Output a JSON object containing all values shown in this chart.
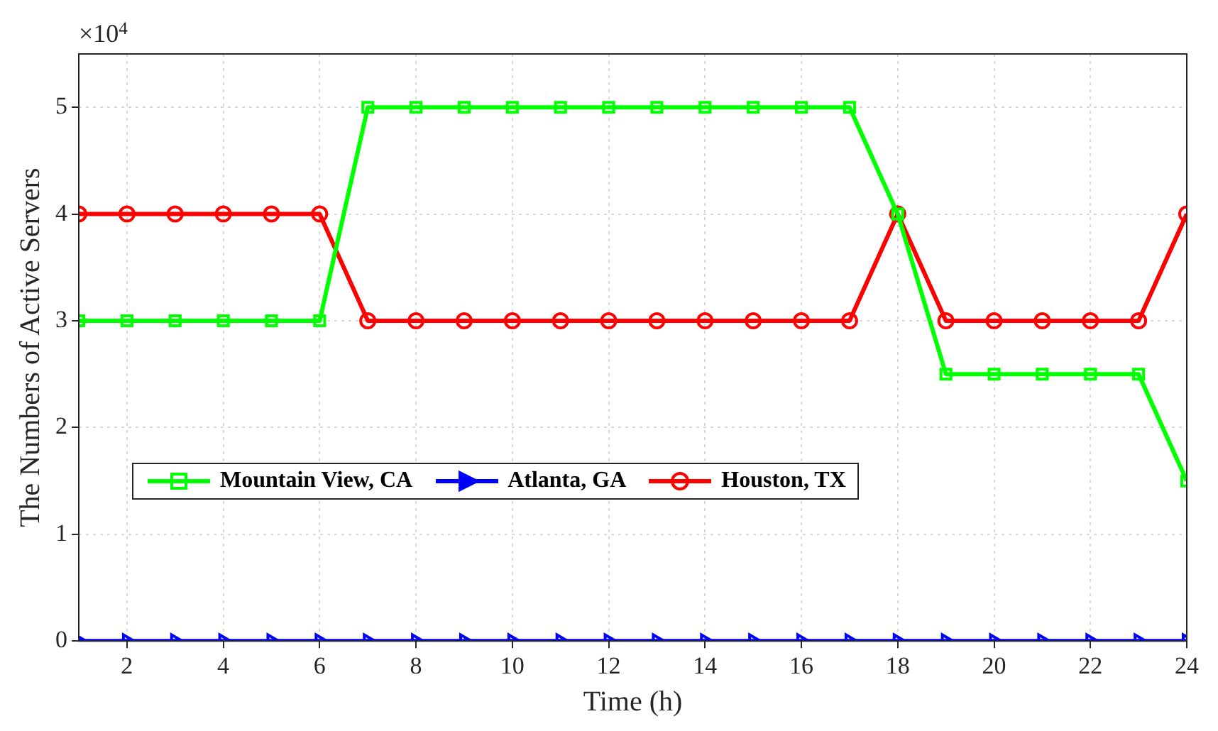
{
  "chart_data": {
    "type": "line",
    "xlabel": "Time (h)",
    "ylabel": "The Numbers of Active Servers",
    "annotations": [
      "×10$^{4}$"
    ],
    "x": [
      1,
      2,
      3,
      4,
      5,
      6,
      7,
      8,
      9,
      10,
      11,
      12,
      13,
      14,
      15,
      16,
      17,
      18,
      19,
      20,
      21,
      22,
      23,
      24
    ],
    "series": [
      {
        "name": "Mountain View, CA",
        "color": "#00ff00",
        "marker": "square",
        "values": [
          3,
          3,
          3,
          3,
          3,
          3,
          5,
          5,
          5,
          5,
          5,
          5,
          5,
          5,
          5,
          5,
          5,
          4,
          2.5,
          2.5,
          2.5,
          2.5,
          2.5,
          1.5
        ]
      },
      {
        "name": "Atlanta, GA",
        "color": "#0000ff",
        "marker": "triangle",
        "values": [
          0,
          0,
          0,
          0,
          0,
          0,
          0,
          0,
          0,
          0,
          0,
          0,
          0,
          0,
          0,
          0,
          0,
          0,
          0,
          0,
          0,
          0,
          0,
          0
        ]
      },
      {
        "name": "Houston, TX",
        "color": "#ff0000",
        "marker": "circle",
        "values": [
          4,
          4,
          4,
          4,
          4,
          4,
          3,
          3,
          3,
          3,
          3,
          3,
          3,
          3,
          3,
          3,
          3,
          4,
          3,
          3,
          3,
          3,
          3,
          4
        ]
      }
    ],
    "xlim": [
      1,
      24
    ],
    "xticks": [
      2,
      4,
      6,
      8,
      10,
      12,
      14,
      16,
      18,
      20,
      22,
      24
    ],
    "ylim": [
      0,
      5.5
    ],
    "yticks": [
      0,
      1,
      2,
      3,
      4,
      5
    ],
    "grid": true,
    "legend": "left",
    "line_style": "solid"
  }
}
